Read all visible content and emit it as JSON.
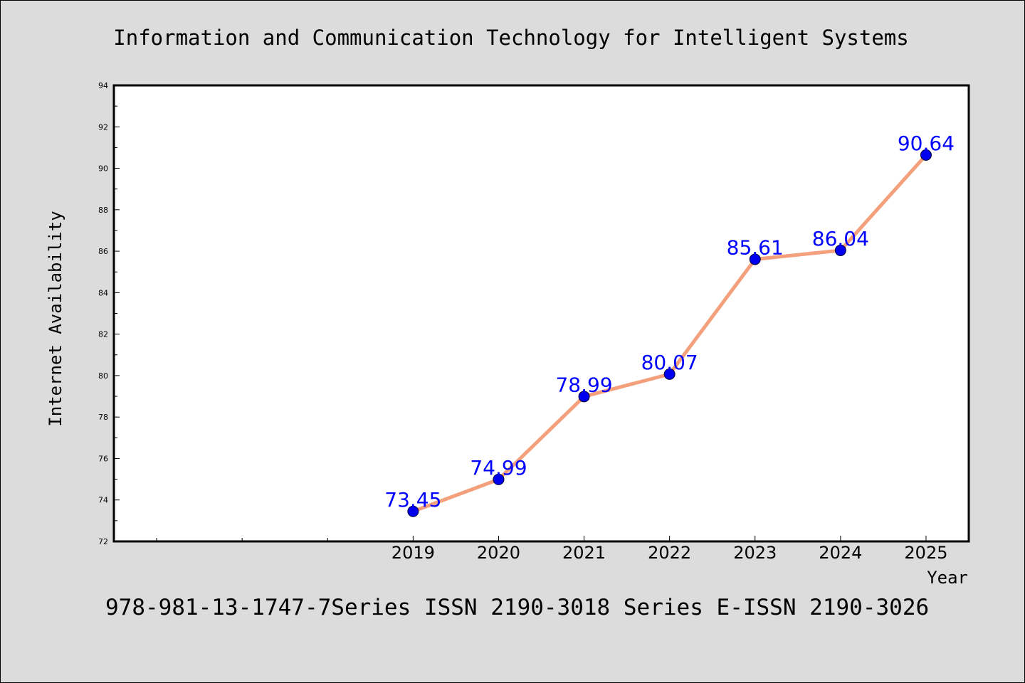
{
  "chart_data": {
    "type": "line",
    "title": "Information and Communication Technology for Intelligent Systems",
    "xlabel": "Year",
    "ylabel": "Internet Availability",
    "footer": "978-981-13-1747-7Series ISSN 2190-3018 Series E-ISSN 2190-3026",
    "x_ticks": [
      "2019",
      "2020",
      "2021",
      "2022",
      "2023",
      "2024",
      "2025"
    ],
    "y_ticks": [
      "72",
      "74",
      "76",
      "78",
      "80",
      "82",
      "84",
      "86",
      "88",
      "90",
      "92",
      "94"
    ],
    "ylim": [
      72,
      94
    ],
    "x_domain_start": 2015.5,
    "x_domain_end": 2025.5,
    "series": [
      {
        "x": [
          2019,
          2020,
          2021,
          2022,
          2023,
          2024,
          2025
        ],
        "values": [
          73.45,
          74.99,
          78.99,
          80.07,
          85.61,
          86.04,
          90.64
        ],
        "labels": [
          "73.45",
          "74.99",
          "78.99",
          "80.07",
          "85.61",
          "86.04",
          "90.64"
        ],
        "line_color": "#f4a07c",
        "marker_color": "#0000ee",
        "label_color": "#0000ff"
      }
    ],
    "grid": false
  }
}
